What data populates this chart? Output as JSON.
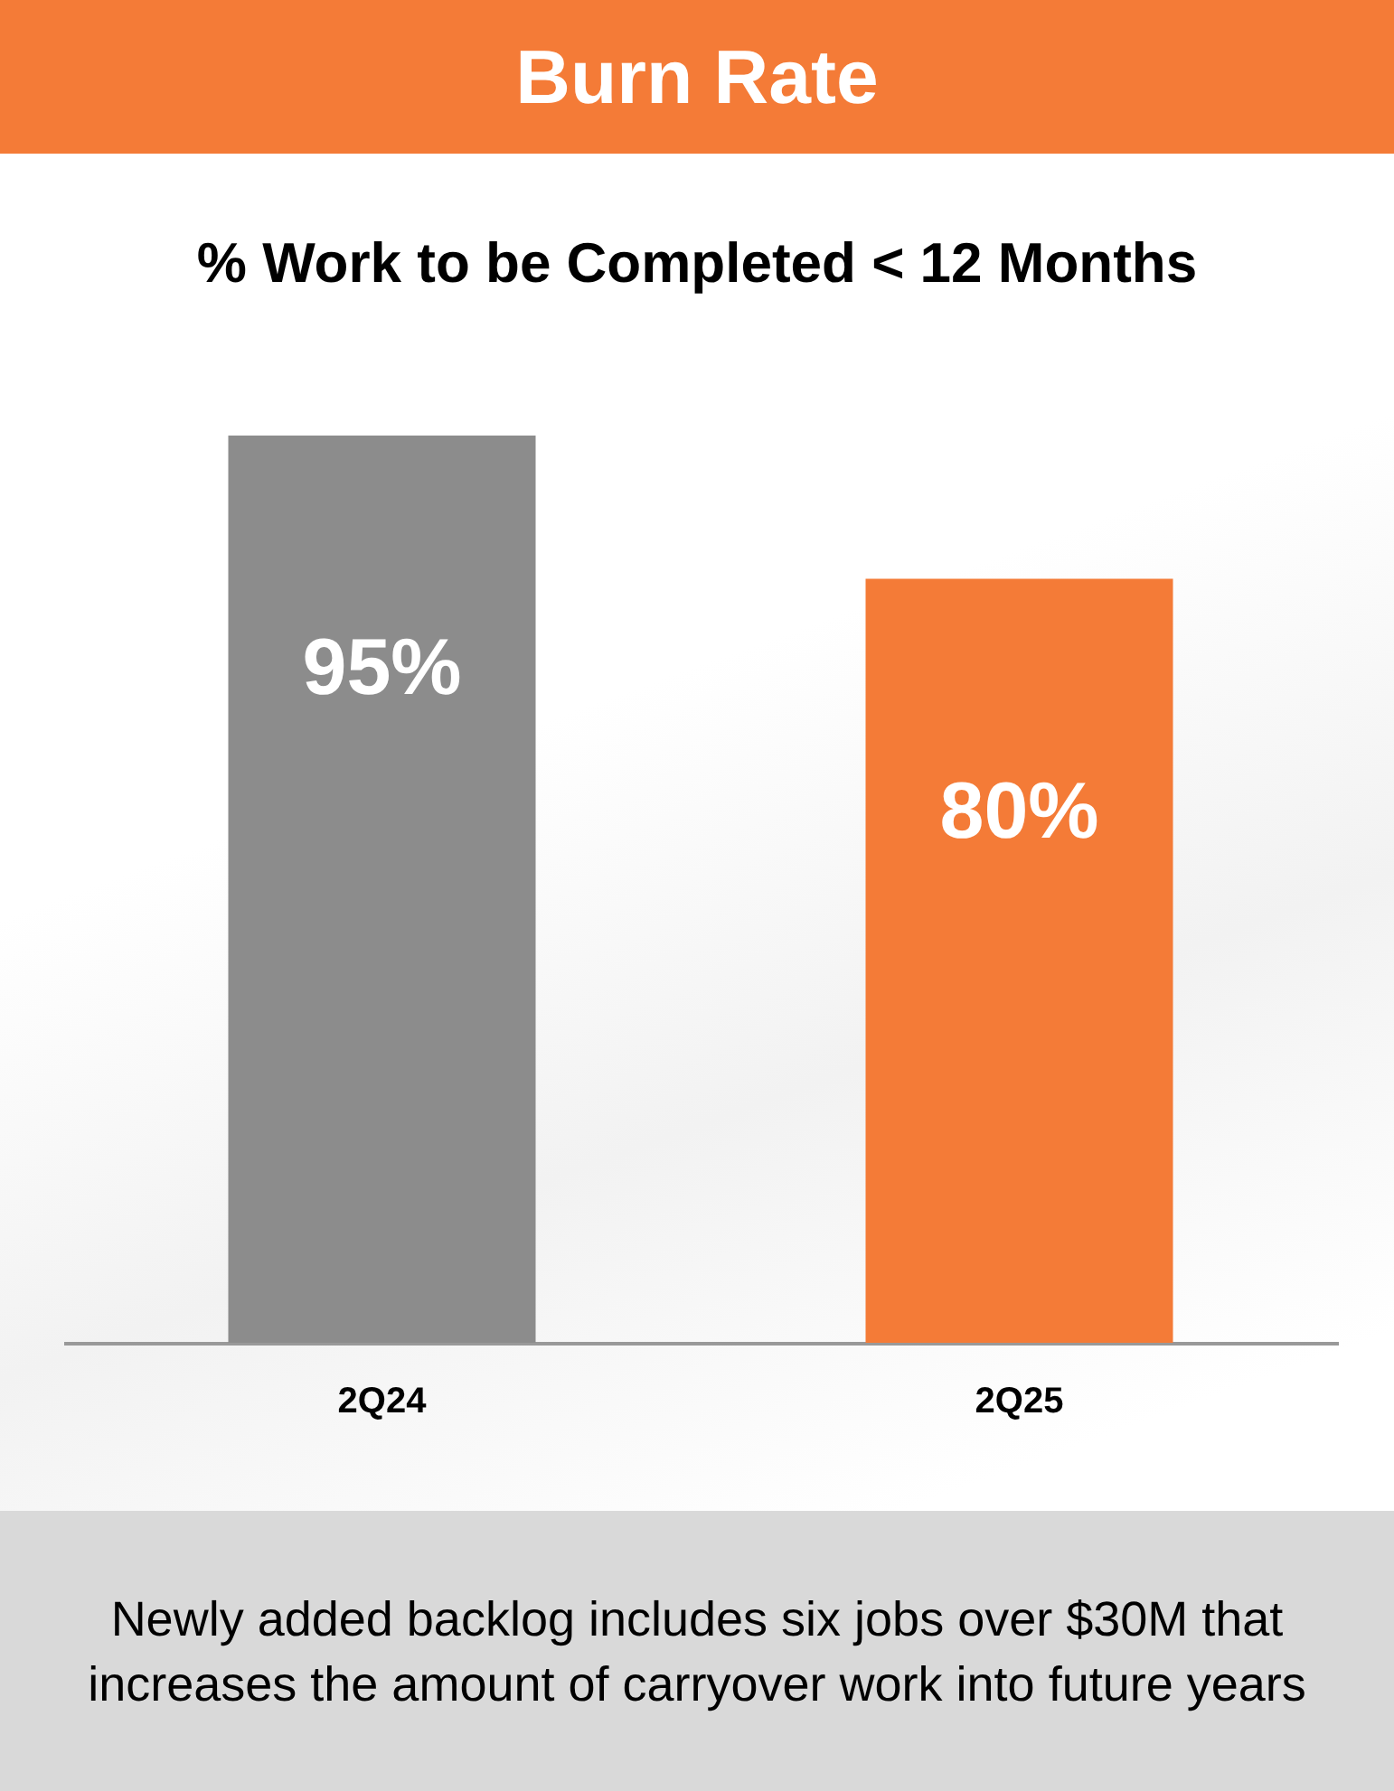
{
  "chart_data": {
    "type": "bar",
    "title": "Burn Rate",
    "subtitle": "% Work to be Completed < 12 Months",
    "categories": [
      "2Q24",
      "2Q25"
    ],
    "values": [
      95,
      80
    ],
    "colors": [
      "#8c8c8c",
      "#f47b37"
    ],
    "value_labels": [
      "95%",
      "80%"
    ],
    "annotations": [
      "Newly added backlog includes six jobs over $30M that increases the amount of carryover work into future years"
    ]
  }
}
